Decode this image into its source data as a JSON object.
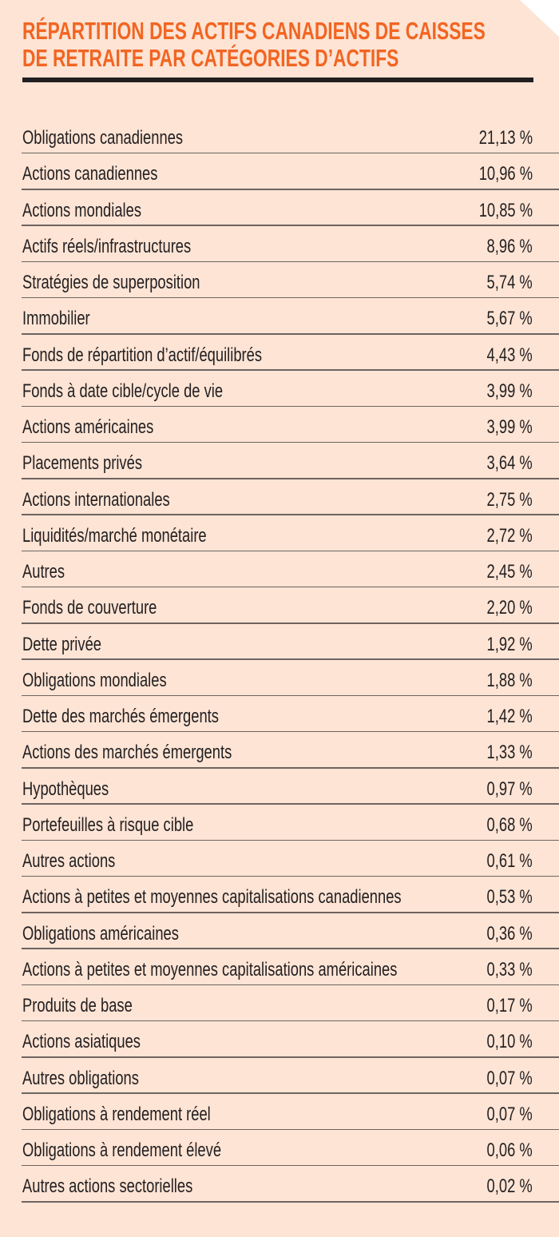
{
  "title": {
    "line1": "RÉPARTITION DES ACTIFS CANADIENS DE CAISSES",
    "line2": "DE RETRAITE PAR CATÉGORIES D’ACTIFS"
  },
  "colors": {
    "background": "#FDE4D5",
    "title": "#F26522",
    "text": "#231F20",
    "rule": "#231F20",
    "divider": "#6E6460"
  },
  "rows": [
    {
      "label": "Obligations canadiennes",
      "value": "21,13 %"
    },
    {
      "label": "Actions canadiennes",
      "value": "10,96 %"
    },
    {
      "label": "Actions mondiales",
      "value": "10,85 %"
    },
    {
      "label": "Actifs réels/infrastructures",
      "value": "8,96 %"
    },
    {
      "label": "Stratégies de superposition",
      "value": "5,74 %"
    },
    {
      "label": "Immobilier",
      "value": "5,67 %"
    },
    {
      "label": "Fonds de répartition d’actif/équilibrés",
      "value": "4,43 %"
    },
    {
      "label": "Fonds à date cible/cycle de vie",
      "value": "3,99 %"
    },
    {
      "label": "Actions américaines",
      "value": "3,99 %"
    },
    {
      "label": "Placements privés",
      "value": "3,64 %"
    },
    {
      "label": "Actions internationales",
      "value": "2,75 %"
    },
    {
      "label": "Liquidités/marché monétaire",
      "value": "2,72 %"
    },
    {
      "label": "Autres",
      "value": "2,45 %"
    },
    {
      "label": "Fonds de couverture",
      "value": "2,20 %"
    },
    {
      "label": "Dette privée",
      "value": "1,92 %"
    },
    {
      "label": "Obligations mondiales",
      "value": "1,88 %"
    },
    {
      "label": "Dette des marchés émergents",
      "value": "1,42 %"
    },
    {
      "label": "Actions des marchés émergents",
      "value": "1,33 %"
    },
    {
      "label": "Hypothèques",
      "value": "0,97 %"
    },
    {
      "label": "Portefeuilles à risque cible",
      "value": "0,68 %"
    },
    {
      "label": "Autres actions",
      "value": "0,61 %"
    },
    {
      "label": "Actions à petites et moyennes capitalisations canadiennes",
      "value": "0,53 %"
    },
    {
      "label": "Obligations américaines",
      "value": "0,36 %"
    },
    {
      "label": "Actions à petites et moyennes capitalisations américaines",
      "value": "0,33 %"
    },
    {
      "label": "Produits de base",
      "value": "0,17 %"
    },
    {
      "label": "Actions asiatiques",
      "value": "0,10 %"
    },
    {
      "label": "Autres obligations",
      "value": "0,07 %"
    },
    {
      "label": "Obligations à rendement réel",
      "value": "0,07 %"
    },
    {
      "label": "Obligations à rendement élevé",
      "value": "0,06 %"
    },
    {
      "label": "Autres actions sectorielles",
      "value": "0,02 %"
    }
  ]
}
